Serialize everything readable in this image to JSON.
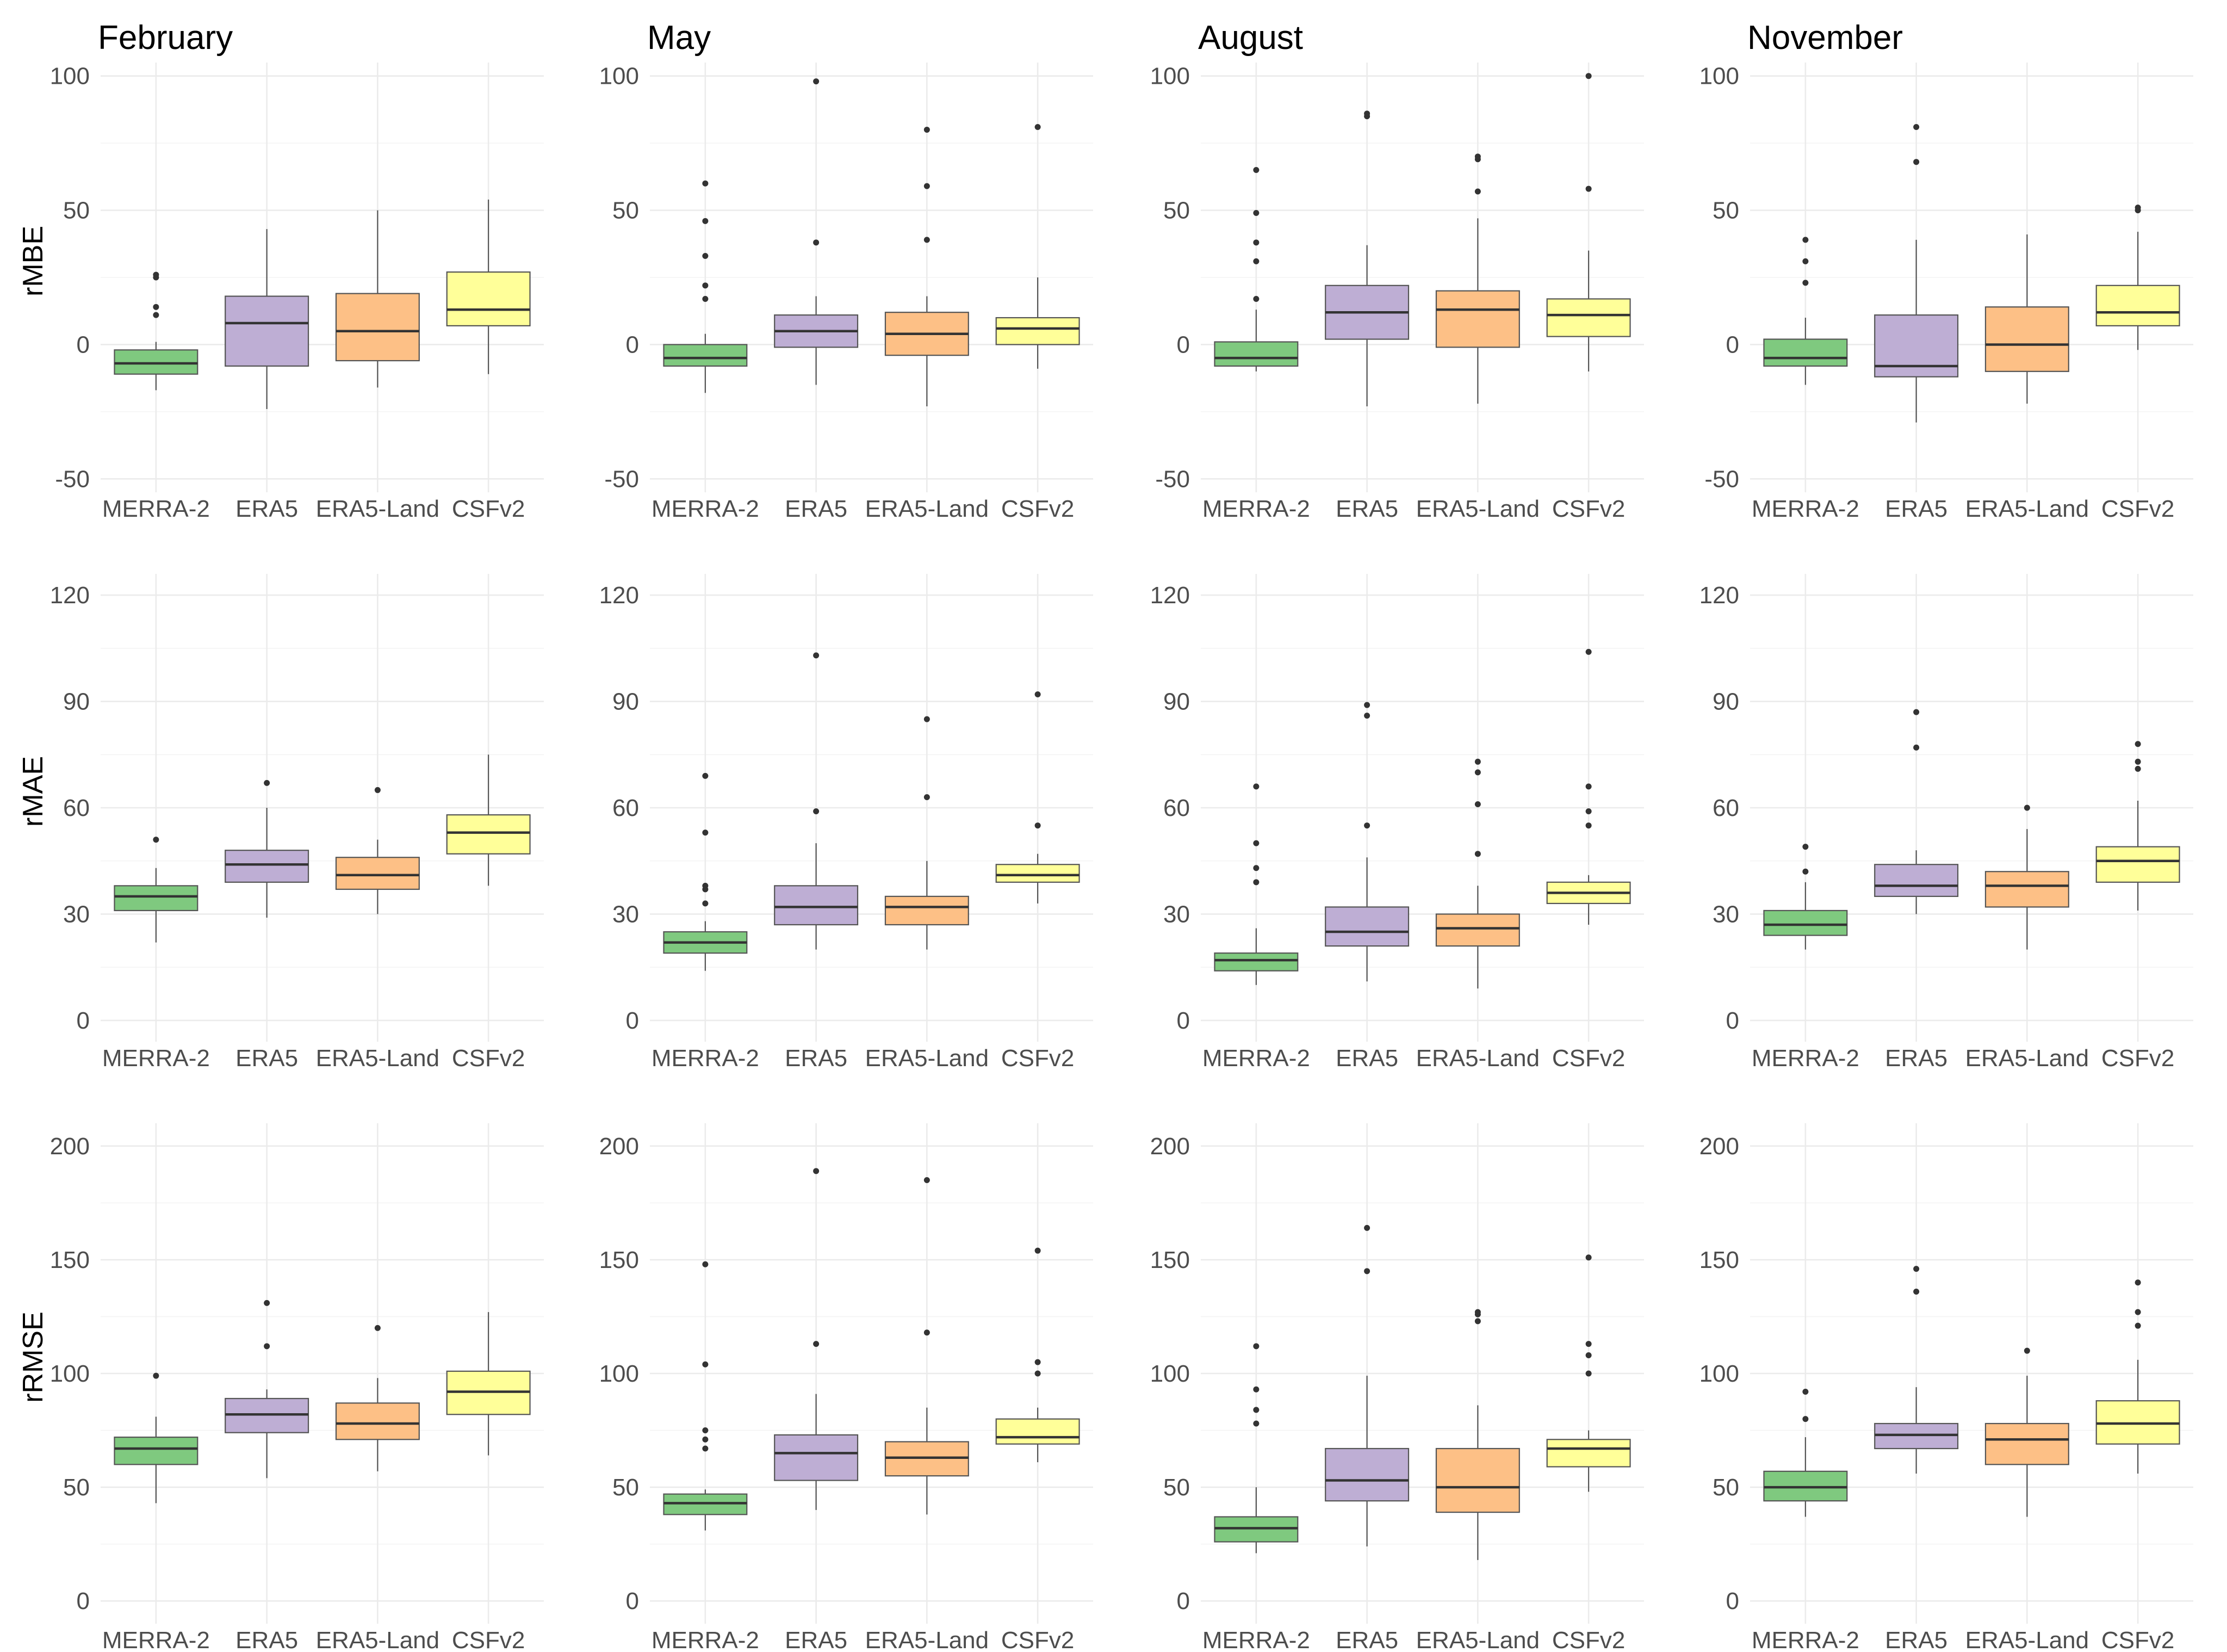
{
  "chart_data": {
    "type": "boxplot",
    "months": [
      "February",
      "May",
      "August",
      "November"
    ],
    "products": [
      "MERRA-2",
      "ERA5",
      "ERA5-Land",
      "CSFv2"
    ],
    "colors": {
      "MERRA-2": "#7fc97f",
      "ERA5": "#beaed4",
      "ERA5-Land": "#fdc086",
      "CSFv2": "#ffff99"
    },
    "metrics": [
      {
        "name": "rMBE",
        "ylim": [
          -55,
          105
        ],
        "ticks": [
          -50,
          0,
          50,
          100
        ]
      },
      {
        "name": "rMAE",
        "ylim": [
          -6,
          126
        ],
        "ticks": [
          0,
          30,
          60,
          90,
          120
        ]
      },
      {
        "name": "rRMSE",
        "ylim": [
          -10,
          210
        ],
        "ticks": [
          0,
          50,
          100,
          150,
          200
        ]
      }
    ],
    "panels": [
      {
        "metric": "rMBE",
        "month": "February",
        "boxes": [
          {
            "product": "MERRA-2",
            "q1": -11,
            "median": -7,
            "q3": -2,
            "lower": -17,
            "upper": 1,
            "outliers": [
              11,
              14,
              25,
              26
            ]
          },
          {
            "product": "ERA5",
            "q1": -8,
            "median": 8,
            "q3": 18,
            "lower": -24,
            "upper": 43,
            "outliers": []
          },
          {
            "product": "ERA5-Land",
            "q1": -6,
            "median": 5,
            "q3": 19,
            "lower": -16,
            "upper": 50,
            "outliers": []
          },
          {
            "product": "CSFv2",
            "q1": 7,
            "median": 13,
            "q3": 27,
            "lower": -11,
            "upper": 54,
            "outliers": []
          }
        ]
      },
      {
        "metric": "rMBE",
        "month": "May",
        "boxes": [
          {
            "product": "MERRA-2",
            "q1": -8,
            "median": -5,
            "q3": 0,
            "lower": -18,
            "upper": 4,
            "outliers": [
              17,
              22,
              33,
              46,
              60
            ]
          },
          {
            "product": "ERA5",
            "q1": -1,
            "median": 5,
            "q3": 11,
            "lower": -15,
            "upper": 18,
            "outliers": [
              38,
              98
            ]
          },
          {
            "product": "ERA5-Land",
            "q1": -4,
            "median": 4,
            "q3": 12,
            "lower": -23,
            "upper": 18,
            "outliers": [
              39,
              59,
              80
            ]
          },
          {
            "product": "CSFv2",
            "q1": 0,
            "median": 6,
            "q3": 10,
            "lower": -9,
            "upper": 25,
            "outliers": [
              81
            ]
          }
        ]
      },
      {
        "metric": "rMBE",
        "month": "August",
        "boxes": [
          {
            "product": "MERRA-2",
            "q1": -8,
            "median": -5,
            "q3": 1,
            "lower": -10,
            "upper": 13,
            "outliers": [
              17,
              31,
              38,
              49,
              65
            ]
          },
          {
            "product": "ERA5",
            "q1": 2,
            "median": 12,
            "q3": 22,
            "lower": -23,
            "upper": 37,
            "outliers": [
              85,
              86
            ]
          },
          {
            "product": "ERA5-Land",
            "q1": -1,
            "median": 13,
            "q3": 20,
            "lower": -22,
            "upper": 47,
            "outliers": [
              57,
              69,
              70
            ]
          },
          {
            "product": "CSFv2",
            "q1": 3,
            "median": 11,
            "q3": 17,
            "lower": -10,
            "upper": 35,
            "outliers": [
              58,
              100
            ]
          }
        ]
      },
      {
        "metric": "rMBE",
        "month": "November",
        "boxes": [
          {
            "product": "MERRA-2",
            "q1": -8,
            "median": -5,
            "q3": 2,
            "lower": -15,
            "upper": 10,
            "outliers": [
              23,
              31,
              39
            ]
          },
          {
            "product": "ERA5",
            "q1": -12,
            "median": -8,
            "q3": 11,
            "lower": -29,
            "upper": 39,
            "outliers": [
              68,
              81
            ]
          },
          {
            "product": "ERA5-Land",
            "q1": -10,
            "median": 0,
            "q3": 14,
            "lower": -22,
            "upper": 41,
            "outliers": []
          },
          {
            "product": "CSFv2",
            "q1": 7,
            "median": 12,
            "q3": 22,
            "lower": -2,
            "upper": 42,
            "outliers": [
              50,
              51
            ]
          }
        ]
      },
      {
        "metric": "rMAE",
        "month": "February",
        "boxes": [
          {
            "product": "MERRA-2",
            "q1": 31,
            "median": 35,
            "q3": 38,
            "lower": 22,
            "upper": 43,
            "outliers": [
              51
            ]
          },
          {
            "product": "ERA5",
            "q1": 39,
            "median": 44,
            "q3": 48,
            "lower": 29,
            "upper": 60,
            "outliers": [
              67
            ]
          },
          {
            "product": "ERA5-Land",
            "q1": 37,
            "median": 41,
            "q3": 46,
            "lower": 30,
            "upper": 51,
            "outliers": [
              65
            ]
          },
          {
            "product": "CSFv2",
            "q1": 47,
            "median": 53,
            "q3": 58,
            "lower": 38,
            "upper": 75,
            "outliers": []
          }
        ]
      },
      {
        "metric": "rMAE",
        "month": "May",
        "boxes": [
          {
            "product": "MERRA-2",
            "q1": 19,
            "median": 22,
            "q3": 25,
            "lower": 14,
            "upper": 28,
            "outliers": [
              33,
              37,
              38,
              53,
              69
            ]
          },
          {
            "product": "ERA5",
            "q1": 27,
            "median": 32,
            "q3": 38,
            "lower": 20,
            "upper": 50,
            "outliers": [
              59,
              103
            ]
          },
          {
            "product": "ERA5-Land",
            "q1": 27,
            "median": 32,
            "q3": 35,
            "lower": 20,
            "upper": 45,
            "outliers": [
              63,
              85
            ]
          },
          {
            "product": "CSFv2",
            "q1": 39,
            "median": 41,
            "q3": 44,
            "lower": 33,
            "upper": 47,
            "outliers": [
              55,
              92
            ]
          }
        ]
      },
      {
        "metric": "rMAE",
        "month": "August",
        "boxes": [
          {
            "product": "MERRA-2",
            "q1": 14,
            "median": 17,
            "q3": 19,
            "lower": 10,
            "upper": 26,
            "outliers": [
              39,
              43,
              50,
              66
            ]
          },
          {
            "product": "ERA5",
            "q1": 21,
            "median": 25,
            "q3": 32,
            "lower": 11,
            "upper": 46,
            "outliers": [
              55,
              86,
              89
            ]
          },
          {
            "product": "ERA5-Land",
            "q1": 21,
            "median": 26,
            "q3": 30,
            "lower": 9,
            "upper": 38,
            "outliers": [
              47,
              61,
              70,
              73
            ]
          },
          {
            "product": "CSFv2",
            "q1": 33,
            "median": 36,
            "q3": 39,
            "lower": 27,
            "upper": 41,
            "outliers": [
              55,
              59,
              66,
              104
            ]
          }
        ]
      },
      {
        "metric": "rMAE",
        "month": "November",
        "boxes": [
          {
            "product": "MERRA-2",
            "q1": 24,
            "median": 27,
            "q3": 31,
            "lower": 20,
            "upper": 39,
            "outliers": [
              42,
              49
            ]
          },
          {
            "product": "ERA5",
            "q1": 35,
            "median": 38,
            "q3": 44,
            "lower": 30,
            "upper": 48,
            "outliers": [
              77,
              87
            ]
          },
          {
            "product": "ERA5-Land",
            "q1": 32,
            "median": 38,
            "q3": 42,
            "lower": 20,
            "upper": 54,
            "outliers": [
              60
            ]
          },
          {
            "product": "CSFv2",
            "q1": 39,
            "median": 45,
            "q3": 49,
            "lower": 31,
            "upper": 62,
            "outliers": [
              71,
              73,
              78
            ]
          }
        ]
      },
      {
        "metric": "rRMSE",
        "month": "February",
        "boxes": [
          {
            "product": "MERRA-2",
            "q1": 60,
            "median": 67,
            "q3": 72,
            "lower": 43,
            "upper": 81,
            "outliers": [
              99
            ]
          },
          {
            "product": "ERA5",
            "q1": 74,
            "median": 82,
            "q3": 89,
            "lower": 54,
            "upper": 93,
            "outliers": [
              112,
              131
            ]
          },
          {
            "product": "ERA5-Land",
            "q1": 71,
            "median": 78,
            "q3": 87,
            "lower": 57,
            "upper": 98,
            "outliers": [
              120
            ]
          },
          {
            "product": "CSFv2",
            "q1": 82,
            "median": 92,
            "q3": 101,
            "lower": 64,
            "upper": 127,
            "outliers": []
          }
        ]
      },
      {
        "metric": "rRMSE",
        "month": "May",
        "boxes": [
          {
            "product": "MERRA-2",
            "q1": 38,
            "median": 43,
            "q3": 47,
            "lower": 31,
            "upper": 49,
            "outliers": [
              67,
              71,
              75,
              104,
              148
            ]
          },
          {
            "product": "ERA5",
            "q1": 53,
            "median": 65,
            "q3": 73,
            "lower": 40,
            "upper": 91,
            "outliers": [
              113,
              189
            ]
          },
          {
            "product": "ERA5-Land",
            "q1": 55,
            "median": 63,
            "q3": 70,
            "lower": 38,
            "upper": 85,
            "outliers": [
              118,
              185
            ]
          },
          {
            "product": "CSFv2",
            "q1": 69,
            "median": 72,
            "q3": 80,
            "lower": 61,
            "upper": 85,
            "outliers": [
              100,
              105,
              154
            ]
          }
        ]
      },
      {
        "metric": "rRMSE",
        "month": "August",
        "boxes": [
          {
            "product": "MERRA-2",
            "q1": 26,
            "median": 32,
            "q3": 37,
            "lower": 21,
            "upper": 50,
            "outliers": [
              78,
              84,
              93,
              112
            ]
          },
          {
            "product": "ERA5",
            "q1": 44,
            "median": 53,
            "q3": 67,
            "lower": 24,
            "upper": 99,
            "outliers": [
              145,
              164
            ]
          },
          {
            "product": "ERA5-Land",
            "q1": 39,
            "median": 50,
            "q3": 67,
            "lower": 18,
            "upper": 86,
            "outliers": [
              123,
              126,
              127
            ]
          },
          {
            "product": "CSFv2",
            "q1": 59,
            "median": 67,
            "q3": 71,
            "lower": 48,
            "upper": 75,
            "outliers": [
              100,
              108,
              113,
              151
            ]
          }
        ]
      },
      {
        "metric": "rRMSE",
        "month": "November",
        "boxes": [
          {
            "product": "MERRA-2",
            "q1": 44,
            "median": 50,
            "q3": 57,
            "lower": 37,
            "upper": 72,
            "outliers": [
              80,
              92
            ]
          },
          {
            "product": "ERA5",
            "q1": 67,
            "median": 73,
            "q3": 78,
            "lower": 56,
            "upper": 94,
            "outliers": [
              136,
              146
            ]
          },
          {
            "product": "ERA5-Land",
            "q1": 60,
            "median": 71,
            "q3": 78,
            "lower": 37,
            "upper": 99,
            "outliers": [
              110
            ]
          },
          {
            "product": "CSFv2",
            "q1": 69,
            "median": 78,
            "q3": 88,
            "lower": 56,
            "upper": 106,
            "outliers": [
              121,
              127,
              140
            ]
          }
        ]
      }
    ]
  }
}
